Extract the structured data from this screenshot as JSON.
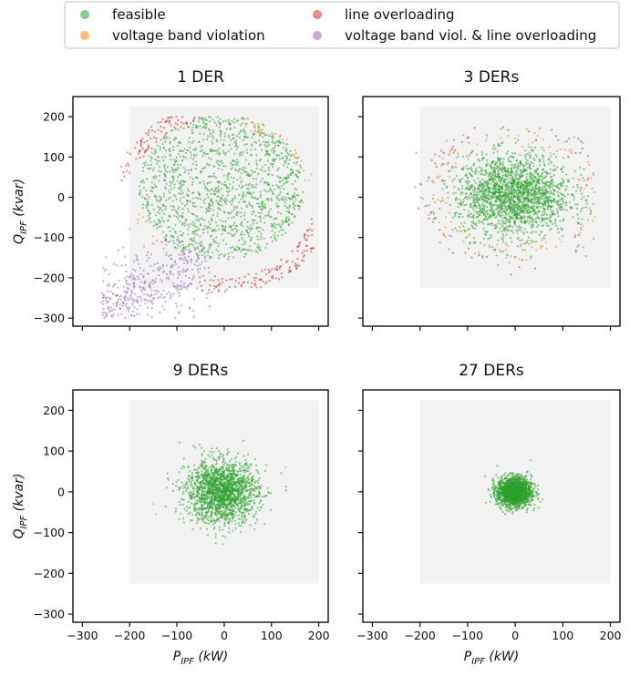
{
  "legend": {
    "entries": [
      {
        "label": "feasible",
        "color": "#2ca02c"
      },
      {
        "label": "line overloading",
        "color": "#d62728"
      },
      {
        "label": "voltage band violation",
        "color": "#ff7f0e"
      },
      {
        "label": "voltage band viol. & line overloading",
        "color": "#9467bd"
      }
    ]
  },
  "chart_data": [
    {
      "type": "scatter",
      "title": "1 DER",
      "xlabel": "",
      "ylabel": "Q_IPF (kvar)",
      "xlim": [
        -320,
        220
      ],
      "ylim": [
        -320,
        250
      ],
      "x_ticks": [
        -300,
        -200,
        -100,
        0,
        100,
        200
      ],
      "y_ticks": [
        200,
        100,
        0,
        -100,
        -200,
        -300
      ],
      "feasible_region": {
        "x": [
          -200,
          200
        ],
        "y": [
          -225,
          225
        ],
        "color": "#f2f2f2"
      },
      "series": [
        {
          "name": "feasible",
          "color": "#2ca02c",
          "cloud": {
            "shape": "disk",
            "center": [
              -5,
              25
            ],
            "radius": [
              175,
              180
            ],
            "count": 1400
          }
        },
        {
          "name": "line overloading",
          "color": "#d62728",
          "cloud": {
            "shape": "ring",
            "center": [
              0,
              0
            ],
            "radius": [
              200,
              205
            ],
            "thickness": 40,
            "count": 700
          }
        },
        {
          "name": "voltage band violation",
          "color": "#ff7f0e",
          "cloud": {
            "shape": "ring",
            "center": [
              0,
              0
            ],
            "radius": [
              175,
              180
            ],
            "thickness": 25,
            "count": 170
          }
        },
        {
          "name": "voltage band viol. & line overloading",
          "color": "#9467bd",
          "cloud": {
            "shape": "lower-left",
            "center": [
              -160,
              -180
            ],
            "count": 500
          }
        }
      ]
    },
    {
      "type": "scatter",
      "title": "3 DERs",
      "xlabel": "",
      "ylabel": "",
      "xlim": [
        -320,
        220
      ],
      "ylim": [
        -320,
        250
      ],
      "x_ticks": [
        -300,
        -200,
        -100,
        0,
        100,
        200
      ],
      "y_ticks": [
        200,
        100,
        0,
        -100,
        -200,
        -300
      ],
      "feasible_region": {
        "x": [
          -200,
          200
        ],
        "y": [
          -225,
          225
        ],
        "color": "#f2f2f2"
      },
      "series": [
        {
          "name": "feasible",
          "color": "#2ca02c",
          "cloud": {
            "shape": "gaussian",
            "center": [
              -5,
              5
            ],
            "sd": [
              60,
              50
            ],
            "count": 2000
          }
        },
        {
          "name": "voltage band violation",
          "color": "#ff7f0e",
          "cloud": {
            "shape": "ring",
            "center": [
              -5,
              5
            ],
            "radius": [
              150,
              130
            ],
            "thickness": 45,
            "count": 120
          }
        },
        {
          "name": "line overloading",
          "color": "#d62728",
          "cloud": {
            "shape": "ring",
            "center": [
              -5,
              5
            ],
            "radius": [
              170,
              165
            ],
            "thickness": 40,
            "count": 60
          }
        },
        {
          "name": "voltage band viol. & line overloading",
          "color": "#9467bd",
          "cloud": {
            "shape": "ring",
            "center": [
              -5,
              5
            ],
            "radius": [
              175,
              155
            ],
            "thickness": 40,
            "count": 40
          }
        }
      ]
    },
    {
      "type": "scatter",
      "title": "9 DERs",
      "xlabel": "P_IPF (kW)",
      "ylabel": "Q_IPF (kvar)",
      "xlim": [
        -320,
        220
      ],
      "ylim": [
        -320,
        250
      ],
      "x_ticks": [
        -300,
        -200,
        -100,
        0,
        100,
        200
      ],
      "y_ticks": [
        200,
        100,
        0,
        -100,
        -200,
        -300
      ],
      "feasible_region": {
        "x": [
          -200,
          200
        ],
        "y": [
          -225,
          225
        ],
        "color": "#f2f2f2"
      },
      "series": [
        {
          "name": "feasible",
          "color": "#2ca02c",
          "cloud": {
            "shape": "gaussian",
            "center": [
              -5,
              0
            ],
            "sd": [
              38,
              38
            ],
            "count": 1800
          }
        },
        {
          "name": "voltage band violation",
          "color": "#ff7f0e",
          "points": [
            [
              -150,
              -30
            ],
            [
              -145,
              -55
            ],
            [
              130,
              60
            ]
          ]
        }
      ]
    },
    {
      "type": "scatter",
      "title": "27 DERs",
      "xlabel": "P_IPF (kW)",
      "ylabel": "",
      "xlim": [
        -320,
        220
      ],
      "ylim": [
        -320,
        250
      ],
      "x_ticks": [
        -300,
        -200,
        -100,
        0,
        100,
        200
      ],
      "y_ticks": [
        200,
        100,
        0,
        -100,
        -200,
        -300
      ],
      "feasible_region": {
        "x": [
          -200,
          200
        ],
        "y": [
          -225,
          225
        ],
        "color": "#f2f2f2"
      },
      "series": [
        {
          "name": "feasible",
          "color": "#2ca02c",
          "cloud": {
            "shape": "gaussian",
            "center": [
              -2,
              0
            ],
            "sd": [
              18,
              18
            ],
            "count": 1800
          }
        }
      ]
    }
  ]
}
